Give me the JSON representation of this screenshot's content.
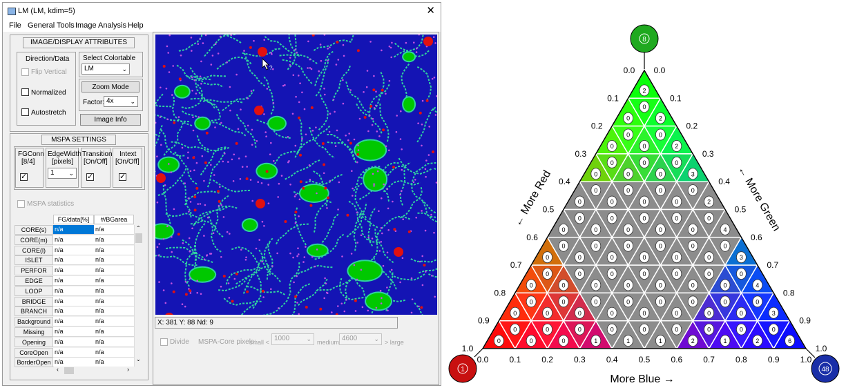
{
  "window": {
    "title": "LM (LM, kdim=5)",
    "close_glyph": "✕"
  },
  "menu": [
    "File",
    "General Tools",
    "Image Analysis",
    "Help"
  ],
  "attributes": {
    "header": "IMAGE/DISPLAY ATTRIBUTES",
    "direction_label": "Direction/Data",
    "flip_vertical": "Flip Vertical",
    "normalized": "Normalized",
    "autostretch": "Autostretch",
    "colortable_label": "Select Colortable",
    "colortable_value": "LM",
    "zoom_button": "Zoom Mode",
    "factor_label": "Factor:",
    "factor_value": "4x",
    "image_info_button": "Image Info"
  },
  "mspa": {
    "header": "MSPA SETTINGS",
    "fgconn_label": "FGConn",
    "fgconn_sub": "[8/4]",
    "edgewidth_label": "EdgeWidth",
    "edgewidth_sub": "[pixels]",
    "edgewidth_value": "1",
    "transition_label": "Transition",
    "transition_sub": "[On/Off]",
    "intext_label": "Intext",
    "intext_sub": "[On/Off]",
    "statistics_label": "MSPA statistics"
  },
  "table": {
    "headers": [
      "FG/data[%]",
      "#/BGarea"
    ],
    "rows": [
      {
        "name": "CORE(s)",
        "v1": "n/a",
        "v2": "n/a"
      },
      {
        "name": "CORE(m)",
        "v1": "n/a",
        "v2": "n/a"
      },
      {
        "name": "CORE(l)",
        "v1": "n/a",
        "v2": "n/a"
      },
      {
        "name": "ISLET",
        "v1": "n/a",
        "v2": "n/a"
      },
      {
        "name": "PERFOR",
        "v1": "n/a",
        "v2": "n/a"
      },
      {
        "name": "EDGE",
        "v1": "n/a",
        "v2": "n/a"
      },
      {
        "name": "LOOP",
        "v1": "n/a",
        "v2": "n/a"
      },
      {
        "name": "BRIDGE",
        "v1": "n/a",
        "v2": "n/a"
      },
      {
        "name": "BRANCH",
        "v1": "n/a",
        "v2": "n/a"
      },
      {
        "name": "Background",
        "v1": "n/a",
        "v2": "n/a"
      },
      {
        "name": "Missing",
        "v1": "n/a",
        "v2": "n/a"
      },
      {
        "name": "Opening",
        "v1": "n/a",
        "v2": "n/a"
      },
      {
        "name": "CoreOpen",
        "v1": "n/a",
        "v2": "n/a"
      },
      {
        "name": "BorderOpen",
        "v1": "n/a",
        "v2": "n/a"
      }
    ]
  },
  "status": {
    "text": "X: 381   Y: 88   Nd: 9"
  },
  "bottom": {
    "divide": "Divide",
    "core_pixels": "MSPA-Core pixels:",
    "small": "small <",
    "small_value": "1000",
    "medium": "medium",
    "medium_value": "4600",
    "large": "> large"
  },
  "map_colors": {
    "background": "#1414b4",
    "core": "#00c800",
    "edge": "#30d2a0",
    "red": "#e01010",
    "magenta": "#c050e0"
  },
  "triangle": {
    "top_corner_value": "8",
    "bottom_left_value": "1",
    "bottom_right_value": "48",
    "top_color": "#1fa91f",
    "left_color": "#c81010",
    "right_color": "#1a2fa8",
    "label_red": "More Red",
    "label_green": "More Green",
    "label_blue": "More Blue",
    "left_ticks": [
      "1.0",
      "0.9",
      "0.8",
      "0.7",
      "0.6",
      "0.5",
      "0.4",
      "0.3",
      "0.2",
      "0.1",
      "0.0"
    ],
    "right_ticks": [
      "1.0",
      "0.9",
      "0.8",
      "0.7",
      "0.6",
      "0.5",
      "0.4",
      "0.3",
      "0.2",
      "0.1",
      "0.0"
    ],
    "bottom_ticks": [
      "0.0",
      "0.1",
      "0.2",
      "0.3",
      "0.4",
      "0.5",
      "0.6",
      "0.7",
      "0.8",
      "0.9",
      "1.0"
    ],
    "cell_values_up": [
      [
        "2"
      ],
      [
        "0",
        "2"
      ],
      [
        "0",
        "0",
        "2"
      ],
      [
        "0",
        "0",
        "0",
        "3"
      ],
      [
        "0",
        "0",
        "0",
        "0",
        "2"
      ],
      [
        "0",
        "0",
        "0",
        "0",
        "0",
        "4"
      ],
      [
        "0",
        "0",
        "0",
        "0",
        "0",
        "0",
        "3"
      ],
      [
        "0",
        "0",
        "0",
        "0",
        "0",
        "0",
        "0",
        "4"
      ],
      [
        "0",
        "0",
        "0",
        "0",
        "0",
        "0",
        "0",
        "0",
        "3"
      ],
      [
        "0",
        "0",
        "0",
        "1",
        "1",
        "1",
        "2",
        "1",
        "2",
        "6"
      ]
    ],
    "cell_values_down": [
      [],
      [
        "0"
      ],
      [
        "0",
        "0"
      ],
      [
        "0",
        "0",
        "0"
      ],
      [
        "0",
        "0",
        "0",
        "0"
      ],
      [
        "0",
        "0",
        "0",
        "0",
        "0"
      ],
      [
        "0",
        "0",
        "0",
        "0",
        "0",
        "0"
      ],
      [
        "0",
        "0",
        "0",
        "0",
        "0",
        "0",
        "0"
      ],
      [
        "0",
        "0",
        "0",
        "0",
        "0",
        "0",
        "0",
        "0"
      ],
      [
        "0",
        "0",
        "0",
        "0",
        "0",
        "0",
        "0",
        "0",
        "0"
      ]
    ]
  }
}
